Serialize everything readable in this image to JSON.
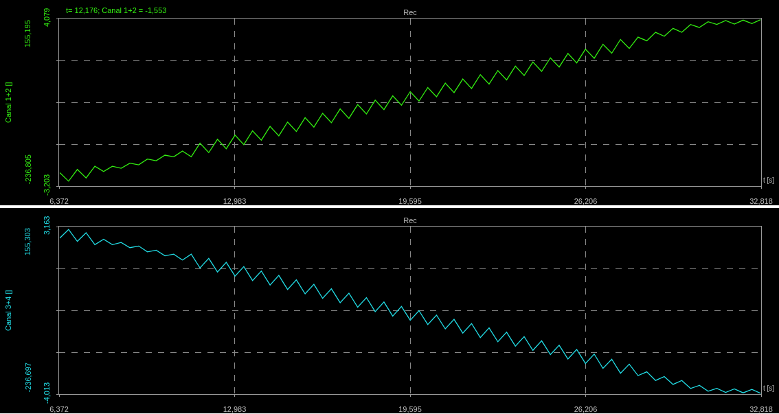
{
  "chart_data": [
    {
      "type": "line",
      "title": "Rec",
      "ylabel": "Canal 1+2 []",
      "xlabel": "t [s]",
      "annotations": [
        "155,195",
        "-236,805",
        "t= 12,176; Canal 1+2 = -1,553"
      ],
      "x": [
        6400,
        6730,
        7060,
        7390,
        7720,
        8050,
        8380,
        8710,
        9040,
        9370,
        9700,
        10030,
        10360,
        10690,
        11020,
        11350,
        11680,
        12010,
        12340,
        12670,
        13000,
        13330,
        13660,
        13990,
        14320,
        14650,
        14980,
        15310,
        15640,
        15970,
        16300,
        16630,
        16960,
        17290,
        17620,
        17950,
        18280,
        18610,
        18940,
        19270,
        19600,
        19930,
        20260,
        20590,
        20920,
        21250,
        21580,
        21910,
        22240,
        22570,
        22900,
        23230,
        23560,
        23890,
        24220,
        24550,
        24880,
        25210,
        25540,
        25870,
        26200,
        26530,
        26860,
        27190,
        27520,
        27850,
        28180,
        28510,
        28840,
        29170,
        29500,
        29830,
        30160,
        30490,
        30820,
        31150,
        31480,
        31810,
        32140,
        32470,
        32800
      ],
      "series": [
        {
          "color": "#33ee11",
          "values": [
            -2620,
            -2990,
            -2480,
            -2850,
            -2340,
            -2570,
            -2340,
            -2430,
            -2210,
            -2280,
            -2030,
            -2100,
            -1860,
            -1930,
            -1680,
            -1930,
            -1340,
            -1750,
            -1170,
            -1580,
            -990,
            -1400,
            -800,
            -1210,
            -610,
            -1020,
            -420,
            -830,
            -230,
            -640,
            -40,
            -450,
            150,
            -260,
            340,
            -70,
            530,
            120,
            720,
            310,
            900,
            490,
            1080,
            680,
            1270,
            860,
            1450,
            1040,
            1640,
            1230,
            1820,
            1410,
            2010,
            1600,
            2190,
            1780,
            2370,
            1970,
            2560,
            2150,
            2750,
            2350,
            2960,
            2570,
            3170,
            2780,
            3270,
            3110,
            3480,
            3310,
            3650,
            3480,
            3820,
            3690,
            3940,
            3820,
            3990,
            3840,
            4010,
            3860,
            4030
          ]
        }
      ],
      "xlim": [
        6372,
        32818
      ],
      "xticks": [
        {
          "value": 6372,
          "label": "6,372"
        },
        {
          "value": 12983,
          "label": "12,983"
        },
        {
          "value": 19595,
          "label": "19,595"
        },
        {
          "value": 26206,
          "label": "26,206"
        },
        {
          "value": 32818,
          "label": "32,818"
        }
      ],
      "ylim": [
        -3203,
        4079
      ],
      "yticks": [
        {
          "value": -3203,
          "label": "-3,203"
        },
        {
          "value": -1382.5,
          "label": null
        },
        {
          "value": 438,
          "label": null
        },
        {
          "value": 2258.5,
          "label": null
        },
        {
          "value": 4079,
          "label": "4,079"
        }
      ],
      "grid": true,
      "marker": "none",
      "line_style": "solid"
    },
    {
      "type": "line",
      "title": "Rec",
      "ylabel": "Canal 3+4 []",
      "xlabel": "t [s]",
      "annotations": [
        "155,303",
        "-236,697"
      ],
      "x": [
        6400,
        6730,
        7060,
        7390,
        7720,
        8050,
        8380,
        8710,
        9040,
        9370,
        9700,
        10030,
        10360,
        10690,
        11020,
        11350,
        11680,
        12010,
        12340,
        12670,
        13000,
        13330,
        13660,
        13990,
        14320,
        14650,
        14980,
        15310,
        15640,
        15970,
        16300,
        16630,
        16960,
        17290,
        17620,
        17950,
        18280,
        18610,
        18940,
        19270,
        19600,
        19930,
        20260,
        20590,
        20920,
        21250,
        21580,
        21910,
        22240,
        22570,
        22900,
        23230,
        23560,
        23890,
        24220,
        24550,
        24880,
        25210,
        25540,
        25870,
        26200,
        26530,
        26860,
        27190,
        27520,
        27850,
        28180,
        28510,
        28840,
        29170,
        29500,
        29830,
        30160,
        30490,
        30820,
        31150,
        31480,
        31810,
        32140,
        32470,
        32800
      ],
      "series": [
        {
          "color": "#22dde6",
          "values": [
            2670,
            3040,
            2530,
            2900,
            2390,
            2620,
            2390,
            2480,
            2260,
            2330,
            2080,
            2150,
            1910,
            1980,
            1730,
            1980,
            1390,
            1800,
            1220,
            1630,
            1040,
            1450,
            850,
            1260,
            660,
            1070,
            470,
            880,
            280,
            690,
            90,
            500,
            -100,
            310,
            -290,
            120,
            -480,
            -70,
            -670,
            -260,
            -850,
            -440,
            -1030,
            -630,
            -1220,
            -810,
            -1400,
            -990,
            -1590,
            -1180,
            -1770,
            -1360,
            -1960,
            -1550,
            -2140,
            -1730,
            -2320,
            -1920,
            -2510,
            -2100,
            -2700,
            -2300,
            -2910,
            -2520,
            -3120,
            -2730,
            -3220,
            -3060,
            -3430,
            -3260,
            -3600,
            -3430,
            -3770,
            -3640,
            -3890,
            -3770,
            -3940,
            -3790,
            -3960,
            -3810,
            -3980
          ]
        }
      ],
      "xlim": [
        6372,
        32818
      ],
      "xticks": [
        {
          "value": 6372,
          "label": "6,372"
        },
        {
          "value": 12983,
          "label": "12,983"
        },
        {
          "value": 19595,
          "label": "19,595"
        },
        {
          "value": 26206,
          "label": "26,206"
        },
        {
          "value": 32818,
          "label": "32,818"
        }
      ],
      "ylim": [
        -4013,
        3163
      ],
      "yticks": [
        {
          "value": -4013,
          "label": "-4,013"
        },
        {
          "value": -2219,
          "label": null
        },
        {
          "value": -425,
          "label": null
        },
        {
          "value": 1369,
          "label": null
        },
        {
          "value": 3163,
          "label": "3,163"
        }
      ],
      "grid": true,
      "marker": "none",
      "line_style": "solid"
    }
  ]
}
